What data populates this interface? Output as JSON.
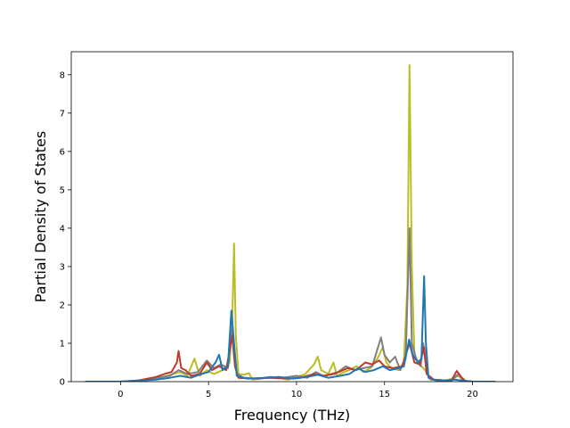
{
  "chart_data": {
    "type": "line",
    "title": "",
    "xlabel": "Frequency (THz)",
    "ylabel": "Partial Density of States",
    "xlim": [
      -2.8,
      22.3
    ],
    "ylim": [
      0,
      8.6
    ],
    "x_ticks": [
      0,
      5,
      10,
      15,
      20
    ],
    "y_ticks": [
      0,
      1,
      2,
      3,
      4,
      5,
      6,
      7,
      8
    ],
    "grid": false,
    "legend": "none",
    "series": [
      {
        "color": "#bcbd22",
        "points": [
          [
            -2,
            0
          ],
          [
            0,
            0
          ],
          [
            0.8,
            0.02
          ],
          [
            1.6,
            0.05
          ],
          [
            2.4,
            0.12
          ],
          [
            3.0,
            0.2
          ],
          [
            3.4,
            0.25
          ],
          [
            3.8,
            0.15
          ],
          [
            4.2,
            0.6
          ],
          [
            4.5,
            0.15
          ],
          [
            4.9,
            0.3
          ],
          [
            5.3,
            0.2
          ],
          [
            5.8,
            0.3
          ],
          [
            6.2,
            0.5
          ],
          [
            6.35,
            1.6
          ],
          [
            6.45,
            3.6
          ],
          [
            6.55,
            1.2
          ],
          [
            6.7,
            0.2
          ],
          [
            7.0,
            0.18
          ],
          [
            7.3,
            0.22
          ],
          [
            7.5,
            0.05
          ],
          [
            8.0,
            0.08
          ],
          [
            8.5,
            0.12
          ],
          [
            9.0,
            0.1
          ],
          [
            9.5,
            0.05
          ],
          [
            10.0,
            0.12
          ],
          [
            10.5,
            0.2
          ],
          [
            11.0,
            0.45
          ],
          [
            11.2,
            0.65
          ],
          [
            11.4,
            0.3
          ],
          [
            11.8,
            0.2
          ],
          [
            12.1,
            0.5
          ],
          [
            12.3,
            0.15
          ],
          [
            12.7,
            0.25
          ],
          [
            13.0,
            0.3
          ],
          [
            13.4,
            0.4
          ],
          [
            13.8,
            0.25
          ],
          [
            14.2,
            0.35
          ],
          [
            14.6,
            0.6
          ],
          [
            14.9,
            0.9
          ],
          [
            15.1,
            0.5
          ],
          [
            15.4,
            0.35
          ],
          [
            15.8,
            0.3
          ],
          [
            16.1,
            0.5
          ],
          [
            16.3,
            2.5
          ],
          [
            16.42,
            8.25
          ],
          [
            16.55,
            3.0
          ],
          [
            16.7,
            0.7
          ],
          [
            16.9,
            0.5
          ],
          [
            17.1,
            0.4
          ],
          [
            17.3,
            0.3
          ],
          [
            17.6,
            0.05
          ],
          [
            18.5,
            0.02
          ],
          [
            19.2,
            0.15
          ],
          [
            19.5,
            0.02
          ],
          [
            20,
            0
          ],
          [
            21.3,
            0
          ]
        ]
      },
      {
        "color": "#7f7f7f",
        "points": [
          [
            -2,
            0
          ],
          [
            0,
            0
          ],
          [
            1.0,
            0.03
          ],
          [
            2.0,
            0.1
          ],
          [
            2.8,
            0.15
          ],
          [
            3.3,
            0.3
          ],
          [
            3.8,
            0.2
          ],
          [
            4.4,
            0.25
          ],
          [
            4.9,
            0.55
          ],
          [
            5.3,
            0.35
          ],
          [
            5.7,
            0.45
          ],
          [
            6.1,
            0.35
          ],
          [
            6.35,
            1.4
          ],
          [
            6.45,
            0.9
          ],
          [
            6.6,
            0.2
          ],
          [
            7.0,
            0.1
          ],
          [
            7.8,
            0.08
          ],
          [
            8.5,
            0.12
          ],
          [
            9.2,
            0.1
          ],
          [
            10.0,
            0.15
          ],
          [
            10.6,
            0.1
          ],
          [
            11.1,
            0.25
          ],
          [
            11.5,
            0.15
          ],
          [
            12.2,
            0.2
          ],
          [
            12.8,
            0.4
          ],
          [
            13.3,
            0.3
          ],
          [
            13.8,
            0.35
          ],
          [
            14.3,
            0.4
          ],
          [
            14.8,
            1.15
          ],
          [
            15.0,
            0.7
          ],
          [
            15.3,
            0.5
          ],
          [
            15.6,
            0.65
          ],
          [
            15.9,
            0.3
          ],
          [
            16.2,
            0.6
          ],
          [
            16.42,
            4.0
          ],
          [
            16.55,
            1.0
          ],
          [
            16.8,
            0.6
          ],
          [
            17.05,
            0.4
          ],
          [
            17.2,
            1.0
          ],
          [
            17.4,
            0.2
          ],
          [
            17.7,
            0.05
          ],
          [
            18.8,
            0.02
          ],
          [
            19.2,
            0.2
          ],
          [
            19.5,
            0.02
          ],
          [
            20,
            0
          ],
          [
            21.3,
            0
          ]
        ]
      },
      {
        "color": "#c0392b",
        "points": [
          [
            -2,
            0
          ],
          [
            0,
            0
          ],
          [
            1.0,
            0.03
          ],
          [
            2.0,
            0.12
          ],
          [
            2.5,
            0.2
          ],
          [
            2.9,
            0.25
          ],
          [
            3.2,
            0.5
          ],
          [
            3.3,
            0.8
          ],
          [
            3.45,
            0.35
          ],
          [
            3.7,
            0.3
          ],
          [
            4.0,
            0.15
          ],
          [
            4.5,
            0.2
          ],
          [
            4.9,
            0.5
          ],
          [
            5.2,
            0.3
          ],
          [
            5.6,
            0.4
          ],
          [
            6.0,
            0.3
          ],
          [
            6.35,
            1.2
          ],
          [
            6.5,
            0.4
          ],
          [
            6.7,
            0.1
          ],
          [
            7.5,
            0.08
          ],
          [
            8.5,
            0.1
          ],
          [
            9.5,
            0.08
          ],
          [
            10.2,
            0.1
          ],
          [
            11.0,
            0.2
          ],
          [
            11.6,
            0.15
          ],
          [
            12.4,
            0.25
          ],
          [
            12.9,
            0.35
          ],
          [
            13.4,
            0.3
          ],
          [
            13.9,
            0.5
          ],
          [
            14.3,
            0.45
          ],
          [
            14.7,
            0.55
          ],
          [
            15.0,
            0.4
          ],
          [
            15.5,
            0.35
          ],
          [
            16.0,
            0.4
          ],
          [
            16.42,
            1.0
          ],
          [
            16.7,
            0.5
          ],
          [
            17.0,
            0.45
          ],
          [
            17.25,
            0.9
          ],
          [
            17.4,
            0.2
          ],
          [
            17.8,
            0.05
          ],
          [
            18.8,
            0.02
          ],
          [
            19.1,
            0.28
          ],
          [
            19.4,
            0.1
          ],
          [
            19.6,
            0.02
          ],
          [
            20,
            0
          ],
          [
            21.3,
            0
          ]
        ]
      },
      {
        "color": "#1f77b4",
        "points": [
          [
            -2,
            0
          ],
          [
            0,
            0
          ],
          [
            1.0,
            0.02
          ],
          [
            2.0,
            0.05
          ],
          [
            2.8,
            0.1
          ],
          [
            3.4,
            0.15
          ],
          [
            4.0,
            0.1
          ],
          [
            4.6,
            0.2
          ],
          [
            5.0,
            0.25
          ],
          [
            5.4,
            0.5
          ],
          [
            5.6,
            0.7
          ],
          [
            5.8,
            0.3
          ],
          [
            6.1,
            0.4
          ],
          [
            6.3,
            1.85
          ],
          [
            6.45,
            1.0
          ],
          [
            6.6,
            0.15
          ],
          [
            7.2,
            0.08
          ],
          [
            8.2,
            0.1
          ],
          [
            9.0,
            0.12
          ],
          [
            9.8,
            0.08
          ],
          [
            10.6,
            0.12
          ],
          [
            11.2,
            0.18
          ],
          [
            11.8,
            0.1
          ],
          [
            12.5,
            0.15
          ],
          [
            13.0,
            0.2
          ],
          [
            13.5,
            0.35
          ],
          [
            13.9,
            0.25
          ],
          [
            14.4,
            0.3
          ],
          [
            14.9,
            0.4
          ],
          [
            15.3,
            0.3
          ],
          [
            15.8,
            0.35
          ],
          [
            16.1,
            0.4
          ],
          [
            16.4,
            1.1
          ],
          [
            16.6,
            0.7
          ],
          [
            16.9,
            0.5
          ],
          [
            17.1,
            0.6
          ],
          [
            17.25,
            2.75
          ],
          [
            17.35,
            1.0
          ],
          [
            17.5,
            0.1
          ],
          [
            18.0,
            0.02
          ],
          [
            19.0,
            0.05
          ],
          [
            19.5,
            0.02
          ],
          [
            20,
            0
          ],
          [
            21.3,
            0
          ]
        ]
      }
    ]
  }
}
